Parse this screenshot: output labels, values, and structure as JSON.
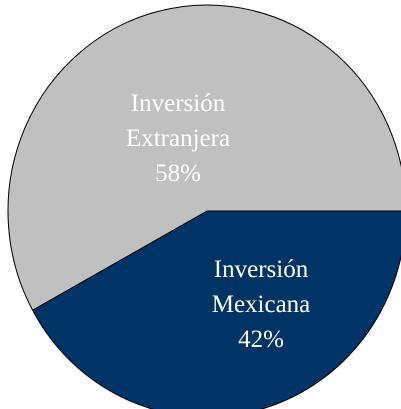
{
  "chart_data": {
    "type": "pie",
    "title": "",
    "slices": [
      {
        "label_lines": [
          "Inversión",
          "Mexicana"
        ],
        "value": 42,
        "value_text": "42%",
        "color": "#003366"
      },
      {
        "label_lines": [
          "Inversión",
          "Extranjera"
        ],
        "value": 58,
        "value_text": "58%",
        "color": "#c0c0c0"
      }
    ],
    "edge_color": "#000000"
  }
}
